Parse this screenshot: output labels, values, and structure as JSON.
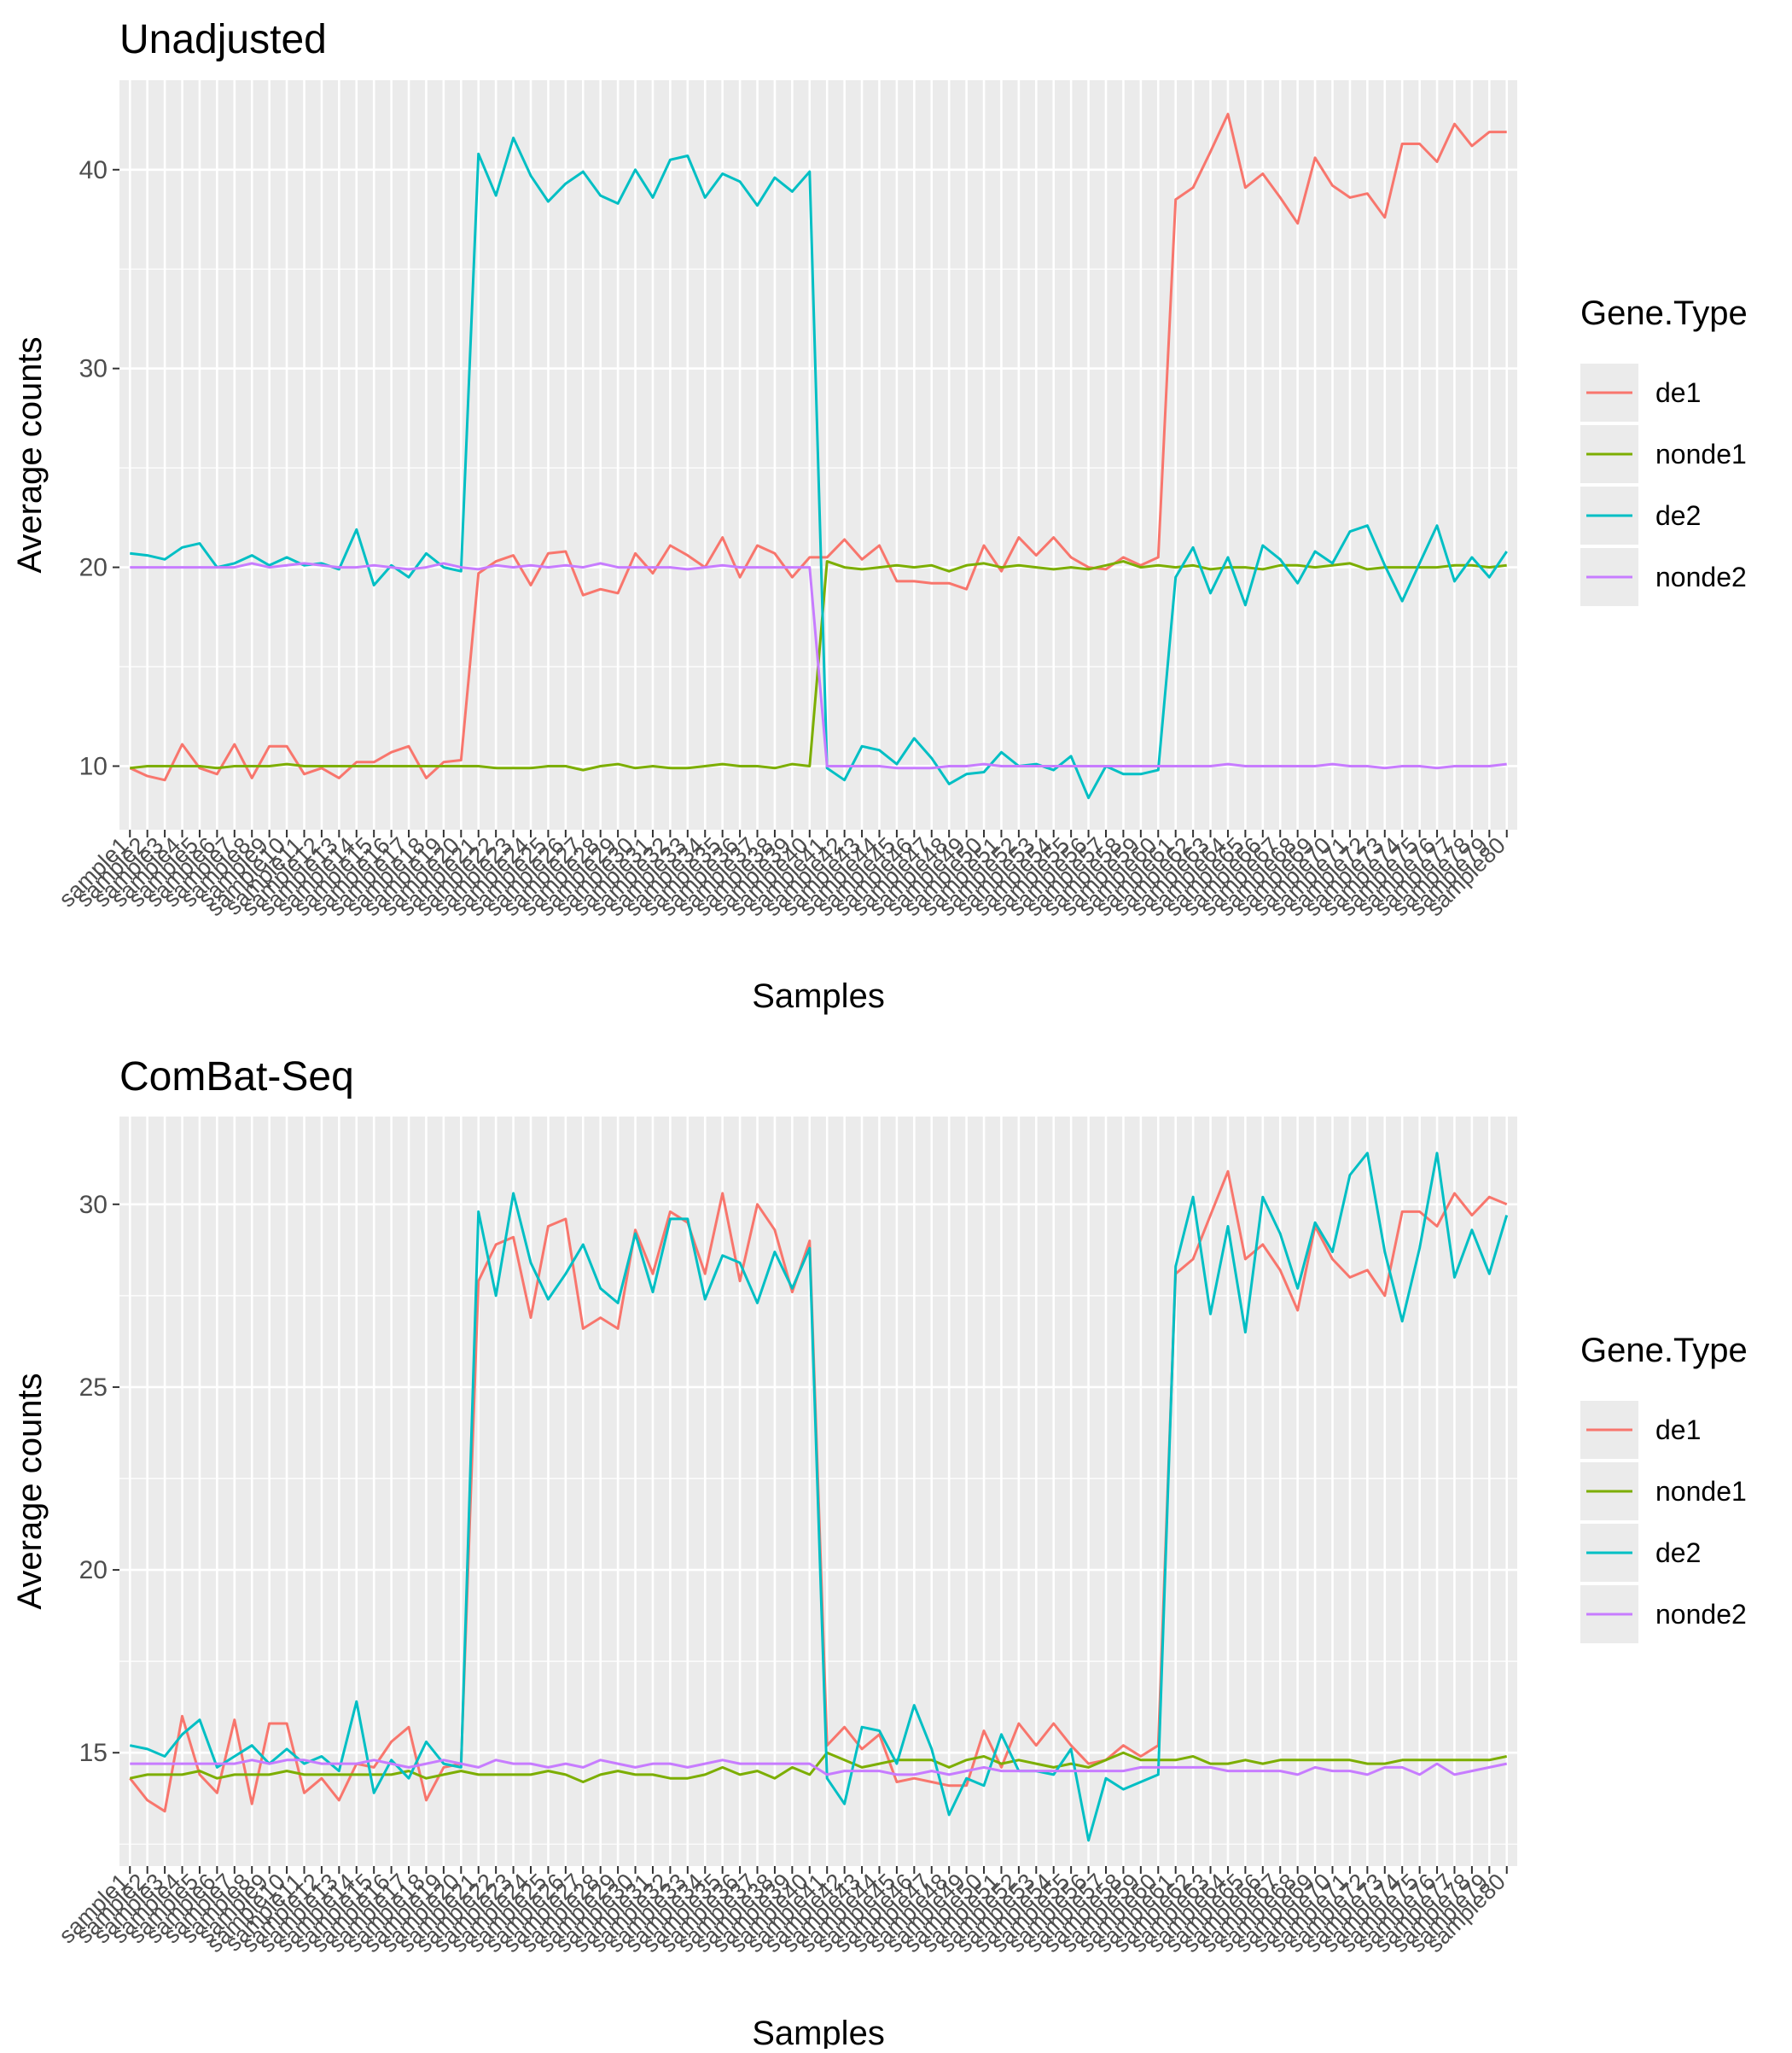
{
  "chart_data": [
    {
      "type": "line",
      "title": "Unadjusted",
      "xlabel": "Samples",
      "ylabel": "Average counts",
      "ylim": [
        6.8,
        44.5
      ],
      "yticks": [
        10,
        20,
        30,
        40
      ],
      "grid": true,
      "legend": {
        "title": "Gene.Type",
        "placement": "right"
      },
      "x": [
        "sample1",
        "sample2",
        "sample3",
        "sample4",
        "sample5",
        "sample6",
        "sample7",
        "sample8",
        "sample9",
        "sample10",
        "sample11",
        "sample12",
        "sample13",
        "sample14",
        "sample15",
        "sample16",
        "sample17",
        "sample18",
        "sample19",
        "sample20",
        "sample21",
        "sample22",
        "sample23",
        "sample24",
        "sample25",
        "sample26",
        "sample27",
        "sample28",
        "sample29",
        "sample30",
        "sample31",
        "sample32",
        "sample33",
        "sample34",
        "sample35",
        "sample36",
        "sample37",
        "sample38",
        "sample39",
        "sample40",
        "sample41",
        "sample42",
        "sample43",
        "sample44",
        "sample45",
        "sample46",
        "sample47",
        "sample48",
        "sample49",
        "sample50",
        "sample51",
        "sample52",
        "sample53",
        "sample54",
        "sample55",
        "sample56",
        "sample57",
        "sample58",
        "sample59",
        "sample60",
        "sample61",
        "sample62",
        "sample63",
        "sample64",
        "sample65",
        "sample66",
        "sample67",
        "sample68",
        "sample69",
        "sample70",
        "sample71",
        "sample72",
        "sample73",
        "sample74",
        "sample75",
        "sample76",
        "sample77",
        "sample78",
        "sample79",
        "sample80"
      ],
      "series": [
        {
          "name": "de1",
          "color": "#F8766D",
          "values": [
            9.9,
            9.5,
            9.3,
            11.1,
            9.9,
            9.6,
            11.1,
            9.4,
            11.0,
            11.0,
            9.6,
            9.9,
            9.4,
            10.2,
            10.2,
            10.7,
            11.0,
            9.4,
            10.2,
            10.3,
            19.7,
            20.3,
            20.6,
            19.1,
            20.7,
            20.8,
            18.6,
            18.9,
            18.7,
            20.7,
            19.7,
            21.1,
            20.6,
            20.0,
            21.5,
            19.5,
            21.1,
            20.7,
            19.5,
            20.5,
            20.5,
            21.4,
            20.4,
            21.1,
            19.3,
            19.3,
            19.2,
            19.2,
            18.9,
            21.1,
            19.8,
            21.5,
            20.6,
            21.5,
            20.5,
            20.0,
            19.9,
            20.5,
            20.1,
            20.5,
            38.5,
            39.1,
            40.9,
            42.8,
            39.1,
            39.8,
            38.6,
            37.3,
            40.6,
            39.2,
            38.6,
            38.8,
            37.6,
            41.3,
            41.3,
            40.4,
            42.3,
            41.2,
            41.9,
            41.9
          ]
        },
        {
          "name": "nonde1",
          "color": "#7CAE00",
          "values": [
            9.9,
            10.0,
            10.0,
            10.0,
            10.0,
            9.9,
            10.0,
            10.0,
            10.0,
            10.1,
            10.0,
            10.0,
            10.0,
            10.0,
            10.0,
            10.0,
            10.0,
            10.0,
            10.0,
            10.0,
            10.0,
            9.9,
            9.9,
            9.9,
            10.0,
            10.0,
            9.8,
            10.0,
            10.1,
            9.9,
            10.0,
            9.9,
            9.9,
            10.0,
            10.1,
            10.0,
            10.0,
            9.9,
            10.1,
            10.0,
            20.3,
            20.0,
            19.9,
            20.0,
            20.1,
            20.0,
            20.1,
            19.8,
            20.1,
            20.2,
            20.0,
            20.1,
            20.0,
            19.9,
            20.0,
            19.9,
            20.1,
            20.3,
            20.0,
            20.1,
            20.0,
            20.1,
            19.9,
            20.0,
            20.0,
            19.9,
            20.1,
            20.1,
            20.0,
            20.1,
            20.2,
            19.9,
            20.0,
            20.0,
            20.0,
            20.0,
            20.1,
            20.1,
            20.0,
            20.1
          ]
        },
        {
          "name": "de2",
          "color": "#00BFC4",
          "values": [
            20.7,
            20.6,
            20.4,
            21.0,
            21.2,
            20.0,
            20.2,
            20.6,
            20.1,
            20.5,
            20.1,
            20.2,
            19.9,
            21.9,
            19.1,
            20.1,
            19.5,
            20.7,
            20.0,
            19.8,
            40.8,
            38.7,
            41.6,
            39.7,
            38.4,
            39.3,
            39.9,
            38.7,
            38.3,
            40.0,
            38.6,
            40.5,
            40.7,
            38.6,
            39.8,
            39.4,
            38.2,
            39.6,
            38.9,
            39.9,
            9.9,
            9.3,
            11.0,
            10.8,
            10.1,
            11.4,
            10.4,
            9.1,
            9.6,
            9.7,
            10.7,
            10.0,
            10.1,
            9.8,
            10.5,
            8.4,
            10.0,
            9.6,
            9.6,
            9.8,
            19.5,
            21.0,
            18.7,
            20.5,
            18.1,
            21.1,
            20.4,
            19.2,
            20.8,
            20.2,
            21.8,
            22.1,
            20.1,
            18.3,
            20.2,
            22.1,
            19.3,
            20.5,
            19.5,
            20.8
          ]
        },
        {
          "name": "nonde2",
          "color": "#C77CFF",
          "values": [
            20.0,
            20.0,
            20.0,
            20.0,
            20.0,
            20.0,
            20.0,
            20.2,
            20.0,
            20.1,
            20.2,
            20.1,
            20.0,
            20.0,
            20.1,
            20.0,
            19.9,
            20.0,
            20.2,
            20.0,
            19.9,
            20.1,
            20.0,
            20.1,
            20.0,
            20.1,
            20.0,
            20.2,
            20.0,
            20.0,
            20.0,
            20.0,
            19.9,
            20.0,
            20.1,
            20.0,
            20.0,
            20.0,
            20.0,
            20.0,
            10.0,
            10.0,
            10.0,
            10.0,
            9.9,
            9.9,
            9.9,
            10.0,
            10.0,
            10.1,
            10.0,
            10.0,
            10.0,
            10.0,
            10.0,
            10.0,
            10.0,
            10.0,
            10.0,
            10.0,
            10.0,
            10.0,
            10.0,
            10.1,
            10.0,
            10.0,
            10.0,
            10.0,
            10.0,
            10.1,
            10.0,
            10.0,
            9.9,
            10.0,
            10.0,
            9.9,
            10.0,
            10.0,
            10.0,
            10.1
          ]
        }
      ]
    },
    {
      "type": "line",
      "title": "ComBat-Seq",
      "xlabel": "Samples",
      "ylabel": "Average counts",
      "ylim": [
        11.9,
        32.4
      ],
      "yticks": [
        15,
        20,
        25,
        30
      ],
      "grid": true,
      "legend": {
        "title": "Gene.Type",
        "placement": "right"
      },
      "x": [
        "sample1",
        "sample2",
        "sample3",
        "sample4",
        "sample5",
        "sample6",
        "sample7",
        "sample8",
        "sample9",
        "sample10",
        "sample11",
        "sample12",
        "sample13",
        "sample14",
        "sample15",
        "sample16",
        "sample17",
        "sample18",
        "sample19",
        "sample20",
        "sample21",
        "sample22",
        "sample23",
        "sample24",
        "sample25",
        "sample26",
        "sample27",
        "sample28",
        "sample29",
        "sample30",
        "sample31",
        "sample32",
        "sample33",
        "sample34",
        "sample35",
        "sample36",
        "sample37",
        "sample38",
        "sample39",
        "sample40",
        "sample41",
        "sample42",
        "sample43",
        "sample44",
        "sample45",
        "sample46",
        "sample47",
        "sample48",
        "sample49",
        "sample50",
        "sample51",
        "sample52",
        "sample53",
        "sample54",
        "sample55",
        "sample56",
        "sample57",
        "sample58",
        "sample59",
        "sample60",
        "sample61",
        "sample62",
        "sample63",
        "sample64",
        "sample65",
        "sample66",
        "sample67",
        "sample68",
        "sample69",
        "sample70",
        "sample71",
        "sample72",
        "sample73",
        "sample74",
        "sample75",
        "sample76",
        "sample77",
        "sample78",
        "sample79",
        "sample80"
      ],
      "series": [
        {
          "name": "de1",
          "color": "#F8766D",
          "values": [
            14.3,
            13.7,
            13.4,
            16.0,
            14.4,
            13.9,
            15.9,
            13.6,
            15.8,
            15.8,
            13.9,
            14.3,
            13.7,
            14.7,
            14.6,
            15.3,
            15.7,
            13.7,
            14.6,
            14.7,
            27.9,
            28.9,
            29.1,
            26.9,
            29.4,
            29.6,
            26.6,
            26.9,
            26.6,
            29.3,
            28.1,
            29.8,
            29.5,
            28.1,
            30.3,
            27.9,
            30.0,
            29.3,
            27.6,
            29.0,
            15.2,
            15.7,
            15.1,
            15.5,
            14.2,
            14.3,
            14.2,
            14.1,
            14.1,
            15.6,
            14.6,
            15.8,
            15.2,
            15.8,
            15.2,
            14.7,
            14.8,
            15.2,
            14.9,
            15.2,
            28.1,
            28.5,
            29.7,
            30.9,
            28.5,
            28.9,
            28.2,
            27.1,
            29.4,
            28.5,
            28.0,
            28.2,
            27.5,
            29.8,
            29.8,
            29.4,
            30.3,
            29.7,
            30.2,
            30.0
          ]
        },
        {
          "name": "nonde1",
          "color": "#7CAE00",
          "values": [
            14.3,
            14.4,
            14.4,
            14.4,
            14.5,
            14.3,
            14.4,
            14.4,
            14.4,
            14.5,
            14.4,
            14.4,
            14.4,
            14.4,
            14.4,
            14.4,
            14.5,
            14.3,
            14.4,
            14.5,
            14.4,
            14.4,
            14.4,
            14.4,
            14.5,
            14.4,
            14.2,
            14.4,
            14.5,
            14.4,
            14.4,
            14.3,
            14.3,
            14.4,
            14.6,
            14.4,
            14.5,
            14.3,
            14.6,
            14.4,
            15.0,
            14.8,
            14.6,
            14.7,
            14.8,
            14.8,
            14.8,
            14.6,
            14.8,
            14.9,
            14.7,
            14.8,
            14.7,
            14.6,
            14.7,
            14.6,
            14.8,
            15.0,
            14.8,
            14.8,
            14.8,
            14.9,
            14.7,
            14.7,
            14.8,
            14.7,
            14.8,
            14.8,
            14.8,
            14.8,
            14.8,
            14.7,
            14.7,
            14.8,
            14.8,
            14.8,
            14.8,
            14.8,
            14.8,
            14.9
          ]
        },
        {
          "name": "de2",
          "color": "#00BFC4",
          "values": [
            15.2,
            15.1,
            14.9,
            15.5,
            15.9,
            14.6,
            14.9,
            15.2,
            14.7,
            15.1,
            14.7,
            14.9,
            14.5,
            16.4,
            13.9,
            14.8,
            14.3,
            15.3,
            14.7,
            14.6,
            29.8,
            27.5,
            30.3,
            28.4,
            27.4,
            28.1,
            28.9,
            27.7,
            27.3,
            29.2,
            27.6,
            29.6,
            29.6,
            27.4,
            28.6,
            28.4,
            27.3,
            28.7,
            27.7,
            28.8,
            14.3,
            13.6,
            15.7,
            15.6,
            14.7,
            16.3,
            15.1,
            13.3,
            14.3,
            14.1,
            15.5,
            14.5,
            14.5,
            14.4,
            15.1,
            12.6,
            14.3,
            14.0,
            14.2,
            14.4,
            28.3,
            30.2,
            27.0,
            29.4,
            26.5,
            30.2,
            29.2,
            27.7,
            29.5,
            28.7,
            30.8,
            31.4,
            28.7,
            26.8,
            28.8,
            31.4,
            28.0,
            29.3,
            28.1,
            29.7
          ]
        },
        {
          "name": "nonde2",
          "color": "#C77CFF",
          "values": [
            14.7,
            14.7,
            14.7,
            14.7,
            14.7,
            14.7,
            14.7,
            14.8,
            14.7,
            14.8,
            14.8,
            14.7,
            14.7,
            14.7,
            14.8,
            14.7,
            14.6,
            14.7,
            14.8,
            14.7,
            14.6,
            14.8,
            14.7,
            14.7,
            14.6,
            14.7,
            14.6,
            14.8,
            14.7,
            14.6,
            14.7,
            14.7,
            14.6,
            14.7,
            14.8,
            14.7,
            14.7,
            14.7,
            14.7,
            14.7,
            14.4,
            14.5,
            14.5,
            14.5,
            14.4,
            14.4,
            14.5,
            14.4,
            14.5,
            14.6,
            14.5,
            14.5,
            14.5,
            14.5,
            14.5,
            14.5,
            14.5,
            14.5,
            14.6,
            14.6,
            14.6,
            14.6,
            14.6,
            14.5,
            14.5,
            14.5,
            14.5,
            14.4,
            14.6,
            14.5,
            14.5,
            14.4,
            14.6,
            14.6,
            14.4,
            14.7,
            14.4,
            14.5,
            14.6,
            14.7
          ]
        }
      ]
    }
  ]
}
